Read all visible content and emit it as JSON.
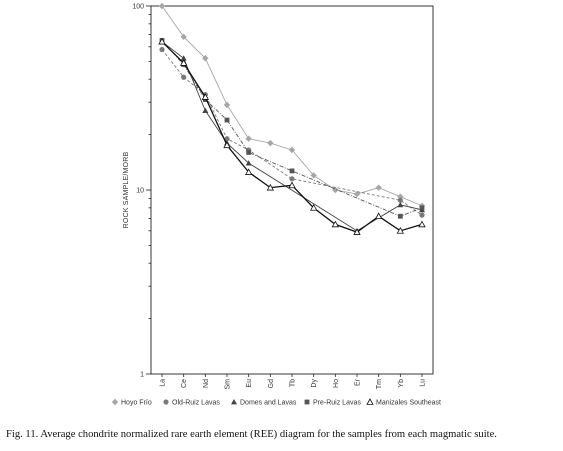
{
  "caption": "Fig. 11. Average chondrite normalized rare earth element (REE) diagram for the samples from each magmatic suite.",
  "chart_data": {
    "type": "line",
    "ylabel": "ROCK SAMPLE/MORB",
    "xlabel": "",
    "yscale": "log",
    "ylim": [
      1,
      100
    ],
    "yticks": [
      "1",
      "10",
      "100"
    ],
    "categories": [
      "La",
      "Ce",
      "Nd",
      "Sm",
      "Eu",
      "Gd",
      "Tb",
      "Dy",
      "Ho",
      "Er",
      "Tm",
      "Yb",
      "Lu"
    ],
    "grid": false,
    "legend_position": "bottom",
    "series": [
      {
        "name": "Hoyo Frío",
        "color": "#a6a6a6",
        "marker": "diamond",
        "line": "solid",
        "values": [
          100,
          68,
          52,
          29,
          19,
          18,
          16.5,
          12,
          10,
          9.5,
          10.3,
          9.2,
          8.2
        ]
      },
      {
        "name": "Old-Ruiz Lavas",
        "color": "#7a7a7a",
        "marker": "circle",
        "line": "dashed",
        "values": [
          58,
          41,
          33,
          19,
          16.5,
          null,
          11.5,
          null,
          null,
          null,
          null,
          8.8,
          7.3
        ]
      },
      {
        "name": "Domes and Lavas",
        "color": "#444444",
        "marker": "triangle",
        "line": "solid",
        "values": [
          64,
          52,
          27,
          18,
          14,
          null,
          null,
          null,
          null,
          6,
          null,
          8.3,
          7.8
        ]
      },
      {
        "name": "Pre-Ruiz Lavas",
        "color": "#555555",
        "marker": "square",
        "line": "dashdot",
        "values": [
          65,
          48,
          31,
          24,
          16,
          null,
          12.7,
          null,
          null,
          null,
          null,
          7.2,
          8
        ]
      },
      {
        "name": "Manizales Southeast",
        "color": "#111111",
        "marker": "open-triangle",
        "line": "solid",
        "values": [
          64,
          49,
          32,
          17.5,
          12.5,
          10.3,
          10.6,
          8,
          6.5,
          5.9,
          7.2,
          6,
          6.5
        ]
      }
    ]
  }
}
